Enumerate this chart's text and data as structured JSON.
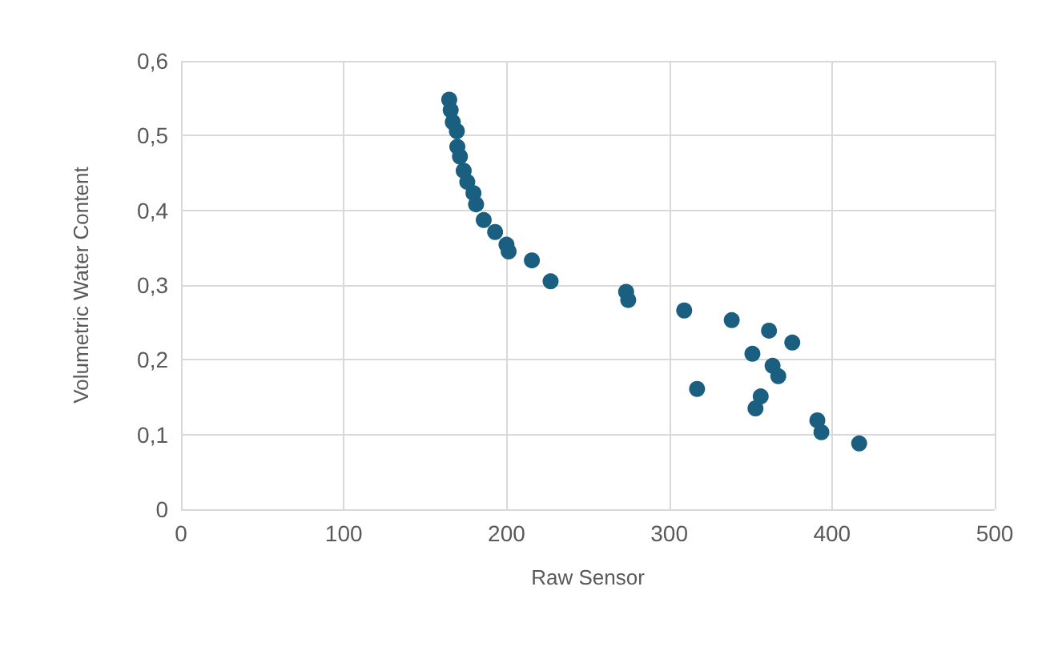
{
  "chart_data": {
    "type": "scatter",
    "xlabel": "Raw Sensor",
    "ylabel": "Volumetric Water Content",
    "x": [
      164.8,
      165.7,
      167,
      169.5,
      169.8,
      171.4,
      173.7,
      175.9,
      179.7,
      181.3,
      186,
      193,
      200,
      201.3,
      215.6,
      227.1,
      273.5,
      274.8,
      309.2,
      338.4,
      361.3,
      375.6,
      351.1,
      363.5,
      367,
      317.1,
      356.2,
      353,
      391,
      393.5,
      416.7
    ],
    "series": [
      {
        "color": "#1a5f80",
        "values": [
          0.548,
          0.534,
          0.518,
          0.506,
          0.485,
          0.472,
          0.453,
          0.438,
          0.423,
          0.408,
          0.387,
          0.371,
          0.354,
          0.345,
          0.333,
          0.305,
          0.291,
          0.28,
          0.266,
          0.253,
          0.239,
          0.223,
          0.208,
          0.192,
          0.178,
          0.161,
          0.151,
          0.135,
          0.119,
          0.103,
          0.088
        ]
      }
    ],
    "xlim": [
      0,
      500
    ],
    "xticks": [
      0,
      100,
      200,
      300,
      400,
      500
    ],
    "ylim": [
      0,
      0.6
    ],
    "yticks": [
      0,
      {
        "value": 0.1,
        "label": "0,1"
      },
      {
        "value": 0.2,
        "label": "0,2"
      },
      {
        "value": 0.3,
        "label": "0,3"
      },
      {
        "value": 0.4,
        "label": "0,4"
      },
      {
        "value": 0.5,
        "label": "0,5"
      },
      {
        "value": 0.6,
        "label": "0,6"
      }
    ],
    "grid": true,
    "marker": "circle"
  }
}
